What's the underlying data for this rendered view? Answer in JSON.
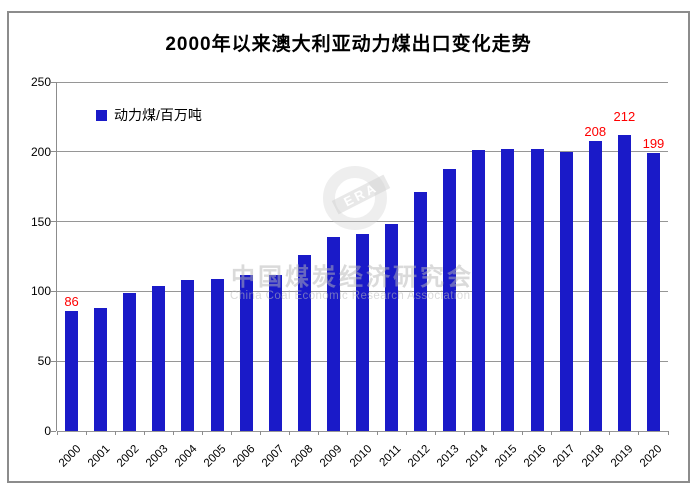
{
  "chart_data": {
    "type": "bar",
    "title": "2000年以来澳大利亚动力煤出口变化走势",
    "series_name": "动力煤/百万吨",
    "categories": [
      "2000",
      "2001",
      "2002",
      "2003",
      "2004",
      "2005",
      "2006",
      "2007",
      "2008",
      "2009",
      "2010",
      "2011",
      "2012",
      "2013",
      "2014",
      "2015",
      "2016",
      "2017",
      "2018",
      "2019",
      "2020"
    ],
    "values": [
      86,
      88,
      99,
      104,
      108,
      109,
      112,
      112,
      126,
      139,
      141,
      148,
      171,
      188,
      201,
      202,
      202,
      200,
      208,
      212,
      199
    ],
    "labeled_points": [
      {
        "category": "2000",
        "value": 86
      },
      {
        "category": "2018",
        "value": 208
      },
      {
        "category": "2019",
        "value": 212
      },
      {
        "category": "2020",
        "value": 199
      }
    ],
    "ylim": [
      0,
      250
    ],
    "yticks": [
      0,
      50,
      100,
      150,
      200,
      250
    ],
    "grid": true,
    "legend_position": "top-left-inside",
    "bar_color": "#1a1ac8",
    "value_label_color": "#ff0000",
    "grid_color": "#969696"
  },
  "watermark": {
    "cn": "中国煤炭经济研究会",
    "en": "China Coal Economic Research Association",
    "logo_text": "ERA"
  }
}
